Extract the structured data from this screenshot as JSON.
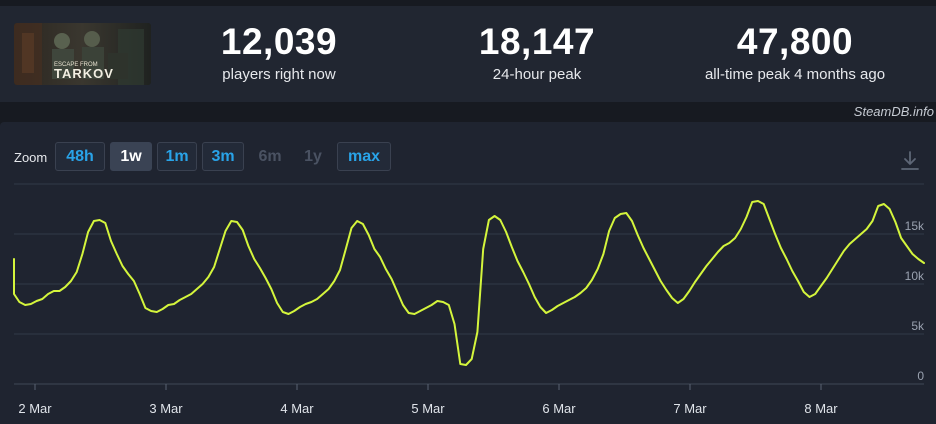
{
  "header": {
    "game_thumbnail": {
      "art_text": "ESCAPE FROM TARKOV"
    },
    "stats": [
      {
        "value": "12,039",
        "label": "players right now"
      },
      {
        "value": "18,147",
        "label": "24-hour peak"
      },
      {
        "value": "47,800",
        "label": "all-time peak 4 months ago"
      }
    ]
  },
  "credit": "SteamDB.info",
  "zoom": {
    "label": "Zoom",
    "options": [
      {
        "label": "48h",
        "state": "normal"
      },
      {
        "label": "1w",
        "state": "active"
      },
      {
        "label": "1m",
        "state": "normal"
      },
      {
        "label": "3m",
        "state": "normal"
      },
      {
        "label": "6m",
        "state": "disabled"
      },
      {
        "label": "1y",
        "state": "disabled"
      },
      {
        "label": "max",
        "state": "normal"
      }
    ]
  },
  "download_icon": "download-icon",
  "colors": {
    "line": "#d4f53c",
    "accent": "#29a3e8",
    "grid": "#323a48",
    "panel": "#1f2430"
  },
  "chart_data": {
    "type": "line",
    "title": "",
    "xlabel": "",
    "ylabel": "",
    "ylim": [
      0,
      20000
    ],
    "y_ticks": [
      {
        "value": 0,
        "label": "0"
      },
      {
        "value": 5000,
        "label": "5k"
      },
      {
        "value": 10000,
        "label": "10k"
      },
      {
        "value": 15000,
        "label": "15k"
      }
    ],
    "x_start": "1 Mar 18:00",
    "x_ticks": [
      "2 Mar",
      "3 Mar",
      "4 Mar",
      "5 Mar",
      "6 Mar",
      "7 Mar",
      "8 Mar"
    ],
    "series": [
      {
        "values": [
          12500,
          10500,
          9000,
          8200,
          7900,
          8000,
          8300,
          8500,
          9000,
          9300,
          9300,
          9700,
          10300,
          11200,
          13000,
          15200,
          16300,
          16400,
          16100,
          14300,
          13000,
          11800,
          11000,
          10300,
          9000,
          7600,
          7300,
          7200,
          7500,
          7900,
          8000,
          8400,
          8700,
          9000,
          9500,
          10000,
          10700,
          11700,
          13500,
          15300,
          16300,
          16200,
          15400,
          13800,
          12500,
          11600,
          10600,
          9500,
          8100,
          7200,
          7000,
          7300,
          7700,
          8000,
          8200,
          8500,
          9000,
          9500,
          10300,
          11400,
          13500,
          15600,
          16300,
          16000,
          14900,
          13500,
          12700,
          11500,
          10500,
          9200,
          7900,
          7100,
          7000,
          7300,
          7600,
          7900,
          8300,
          8200,
          7900,
          6000,
          2000,
          1900,
          2500,
          5200,
          13500,
          16400,
          16800,
          16400,
          15200,
          13700,
          12300,
          11200,
          10000,
          8700,
          7700,
          7100,
          7400,
          7800,
          8100,
          8400,
          8700,
          9100,
          9600,
          10400,
          11500,
          13000,
          15300,
          16600,
          17000,
          17100,
          16300,
          14900,
          13600,
          12500,
          11400,
          10300,
          9400,
          8600,
          8100,
          8500,
          9300,
          10200,
          11000,
          11800,
          12500,
          13200,
          13800,
          14100,
          14600,
          15500,
          16700,
          18200,
          18300,
          18000,
          16500,
          15000,
          13600,
          12500,
          11300,
          10300,
          9200,
          8700,
          9000,
          9800,
          10600,
          11500,
          12400,
          13300,
          14000,
          14500,
          15000,
          15500,
          16300,
          17800,
          18000,
          17500,
          16200,
          14600,
          13800,
          13000,
          12500,
          12100
        ]
      }
    ]
  }
}
